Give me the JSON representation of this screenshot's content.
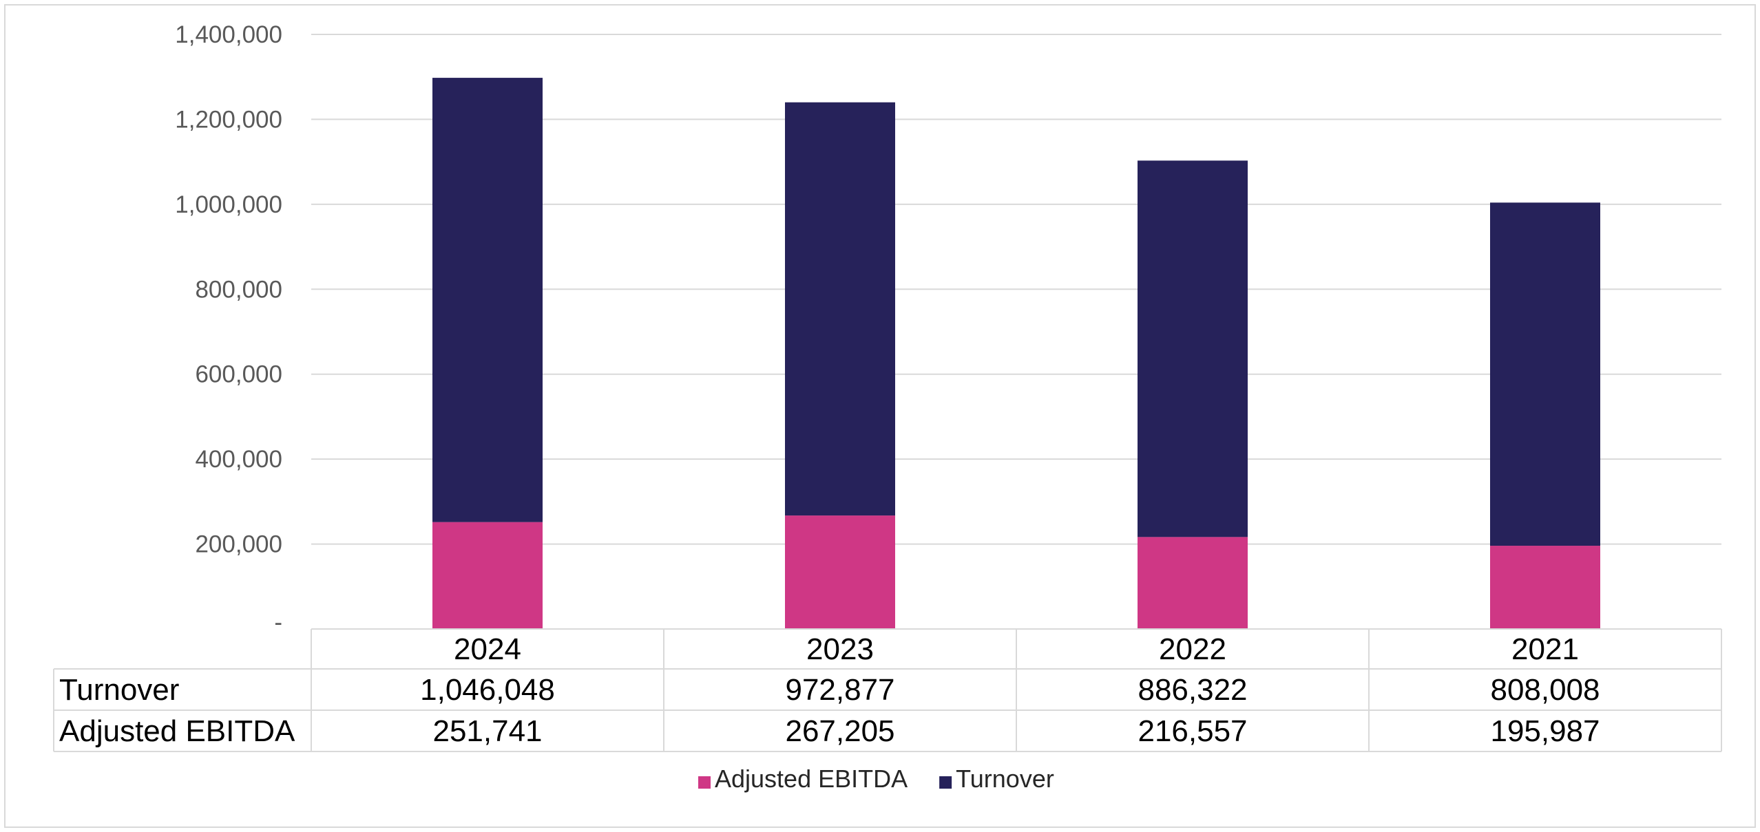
{
  "chart_data": {
    "type": "bar",
    "stacked": true,
    "categories": [
      "2024",
      "2023",
      "2022",
      "2021"
    ],
    "series": [
      {
        "name": "Adjusted EBITDA",
        "values": [
          251741,
          267205,
          216557,
          195987
        ],
        "color": "#cf3785"
      },
      {
        "name": "Turnover",
        "values": [
          1046048,
          972877,
          886322,
          808008
        ],
        "color": "#26225a"
      }
    ],
    "ylim": [
      0,
      1400000
    ],
    "y_ticks": [
      {
        "value": 0,
        "label": "-"
      },
      {
        "value": 200000,
        "label": "200,000"
      },
      {
        "value": 400000,
        "label": "400,000"
      },
      {
        "value": 600000,
        "label": "600,000"
      },
      {
        "value": 800000,
        "label": "800,000"
      },
      {
        "value": 1000000,
        "label": "1,000,000"
      },
      {
        "value": 1200000,
        "label": "1,200,000"
      },
      {
        "value": 1400000,
        "label": "1,400,000"
      }
    ],
    "grid": true,
    "data_table": {
      "rows": [
        {
          "label": "Turnover",
          "cells": [
            "1,046,048",
            "972,877",
            "886,322",
            "808,008"
          ]
        },
        {
          "label": "Adjusted EBITDA",
          "cells": [
            "251,741",
            "267,205",
            "216,557",
            "195,987"
          ]
        }
      ]
    },
    "legend": {
      "position": "bottom",
      "entries": [
        {
          "label": "Adjusted EBITDA",
          "color": "#cf3785"
        },
        {
          "label": "Turnover",
          "color": "#26225a"
        }
      ]
    },
    "colors": {
      "grid": "#d9d9d9",
      "table_border": "#d9d9d9",
      "tick_text": "#595959",
      "table_text": "#000000",
      "legend_text": "#262626"
    }
  }
}
